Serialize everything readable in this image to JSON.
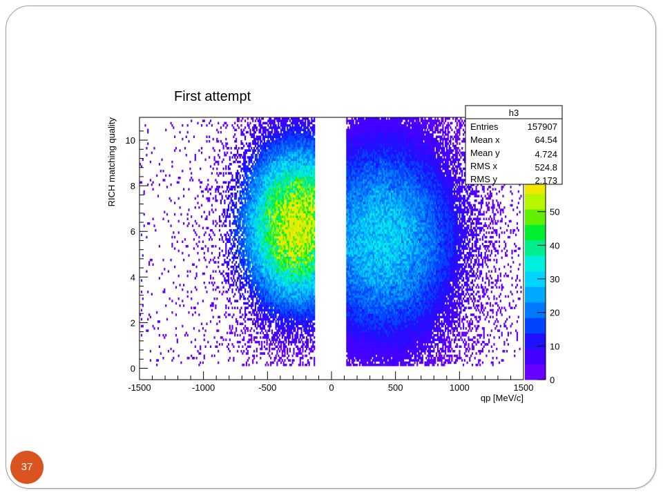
{
  "slide": {
    "page_number": "37"
  },
  "chart_data": {
    "type": "heatmap",
    "title": "First attempt",
    "xlabel": "qp [MeV/c]",
    "ylabel": "RICH matching quality",
    "xlim": [
      -1500,
      1500
    ],
    "ylim": [
      -0.5,
      11.0
    ],
    "x_ticks": [
      -1500,
      -1000,
      -500,
      0,
      500,
      1000,
      1500
    ],
    "y_ticks": [
      0,
      2,
      4,
      6,
      8,
      10
    ],
    "z_ticks": [
      0,
      10,
      20,
      30,
      40,
      50
    ],
    "zlim": [
      0,
      60
    ],
    "stats": {
      "name": "h3",
      "rows": [
        {
          "label": "Entries",
          "value": "157907"
        },
        {
          "label": "Mean x",
          "value": "64.54"
        },
        {
          "label": "Mean y",
          "value": "4.724"
        },
        {
          "label": "RMS x",
          "value": "524.8"
        },
        {
          "label": "RMS y",
          "value": "2.173"
        }
      ]
    },
    "clusters": [
      {
        "x_range": [
          -1500,
          -130
        ],
        "peak_x": -270,
        "peak_y": 6.2,
        "peak_z": 58,
        "sigma_x": 170,
        "sigma_y": 1.9
      },
      {
        "x_range": [
          115,
          1480
        ],
        "peak_x": 400,
        "peak_y": 5.6,
        "peak_z": 30,
        "sigma_x": 240,
        "sigma_y": 2.4
      }
    ],
    "palette": [
      "#6600ff",
      "#4400ff",
      "#1f10ff",
      "#0044ff",
      "#0078ff",
      "#00a8ff",
      "#00d4ff",
      "#00f0e0",
      "#00ee90",
      "#00ee30",
      "#60f000",
      "#b8f500",
      "#f0e800"
    ],
    "grid": false,
    "stats_box_placement": "top-right",
    "palette_axis": "right"
  }
}
